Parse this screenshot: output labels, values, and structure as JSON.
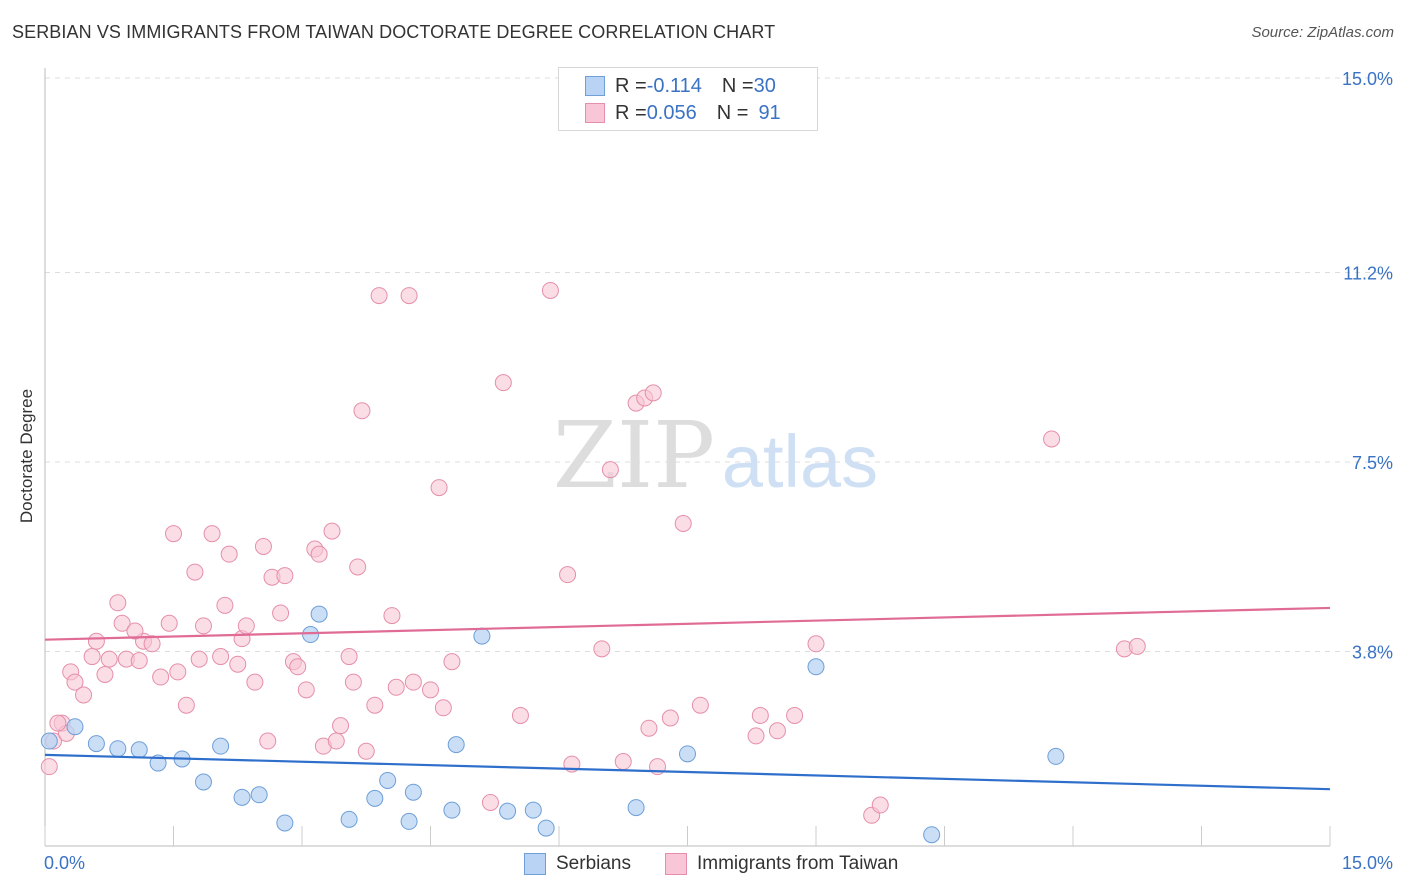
{
  "title": "SERBIAN VS IMMIGRANTS FROM TAIWAN DOCTORATE DEGREE CORRELATION CHART",
  "source": "Source: ZipAtlas.com",
  "watermark": {
    "zip": "ZIP",
    "atlas": "atlas"
  },
  "legend_top": {
    "rows": [
      {
        "r_label": "R = ",
        "r_value": "-0.114",
        "n_label": "N = ",
        "n_value": "30"
      },
      {
        "r_label": "R = ",
        "r_value": "0.056",
        "n_label": "N = ",
        "n_value": "91"
      }
    ]
  },
  "legend_bottom": {
    "serbians": "Serbians",
    "taiwan": "Immigrants from Taiwan"
  },
  "colors": {
    "blue_fill": "#b8d3f3",
    "blue_stroke": "#6e9fd8",
    "blue_line": "#2f6fcc",
    "pink_fill": "#f8c6d6",
    "pink_stroke": "#e58fab",
    "pink_line": "#e06b95",
    "tick_text": "#3a72c4",
    "grid": "#dddddd"
  },
  "chart_data": {
    "type": "scatter",
    "title": "SERBIAN VS IMMIGRANTS FROM TAIWAN DOCTORATE DEGREE CORRELATION CHART",
    "xlabel": "",
    "ylabel": "Doctorate Degree",
    "xlim": [
      0,
      15
    ],
    "ylim": [
      0,
      15
    ],
    "x_tick_labels": [
      "0.0%",
      "15.0%"
    ],
    "y_ticks": [
      3.8,
      7.5,
      11.2,
      15.0
    ],
    "y_tick_labels": [
      "3.8%",
      "7.5%",
      "11.2%",
      "15.0%"
    ],
    "series": [
      {
        "name": "Serbians",
        "r": -0.114,
        "n": 30,
        "trend": {
          "x": [
            0,
            15
          ],
          "y": [
            1.78,
            1.11
          ]
        },
        "points": [
          [
            0.05,
            2.05
          ],
          [
            0.35,
            2.33
          ],
          [
            0.6,
            2.0
          ],
          [
            0.85,
            1.9
          ],
          [
            1.1,
            1.88
          ],
          [
            1.32,
            1.62
          ],
          [
            1.6,
            1.7
          ],
          [
            1.85,
            1.25
          ],
          [
            2.05,
            1.95
          ],
          [
            2.3,
            0.95
          ],
          [
            2.5,
            1.0
          ],
          [
            2.8,
            0.45
          ],
          [
            3.1,
            4.13
          ],
          [
            3.2,
            4.53
          ],
          [
            3.55,
            0.52
          ],
          [
            3.85,
            0.93
          ],
          [
            4.0,
            1.28
          ],
          [
            4.25,
            0.48
          ],
          [
            4.3,
            1.05
          ],
          [
            4.75,
            0.7
          ],
          [
            4.8,
            1.98
          ],
          [
            5.1,
            4.1
          ],
          [
            5.4,
            0.68
          ],
          [
            5.7,
            0.7
          ],
          [
            5.85,
            0.35
          ],
          [
            6.9,
            0.75
          ],
          [
            7.5,
            1.8
          ],
          [
            9.0,
            3.5
          ],
          [
            10.35,
            0.22
          ],
          [
            11.8,
            1.75
          ]
        ]
      },
      {
        "name": "Immigrants from Taiwan",
        "r": 0.056,
        "n": 91,
        "trend": {
          "x": [
            0,
            15
          ],
          "y": [
            4.03,
            4.65
          ]
        },
        "points": [
          [
            0.05,
            1.55
          ],
          [
            0.1,
            2.05
          ],
          [
            0.2,
            2.4
          ],
          [
            0.25,
            2.2
          ],
          [
            0.3,
            3.4
          ],
          [
            0.35,
            3.2
          ],
          [
            0.45,
            2.95
          ],
          [
            0.55,
            3.7
          ],
          [
            0.6,
            4.0
          ],
          [
            0.7,
            3.35
          ],
          [
            0.75,
            3.65
          ],
          [
            0.85,
            4.75
          ],
          [
            0.9,
            4.35
          ],
          [
            0.95,
            3.65
          ],
          [
            1.1,
            3.62
          ],
          [
            1.15,
            4.0
          ],
          [
            1.25,
            3.95
          ],
          [
            1.35,
            3.3
          ],
          [
            1.45,
            4.35
          ],
          [
            1.5,
            6.1
          ],
          [
            1.55,
            3.4
          ],
          [
            1.65,
            2.75
          ],
          [
            1.75,
            5.35
          ],
          [
            1.8,
            3.65
          ],
          [
            1.85,
            4.3
          ],
          [
            1.95,
            6.1
          ],
          [
            2.05,
            3.7
          ],
          [
            2.1,
            4.7
          ],
          [
            2.15,
            5.7
          ],
          [
            2.25,
            3.55
          ],
          [
            2.3,
            4.05
          ],
          [
            2.35,
            4.3
          ],
          [
            2.45,
            3.2
          ],
          [
            2.55,
            5.85
          ],
          [
            2.6,
            2.05
          ],
          [
            2.65,
            5.25
          ],
          [
            2.75,
            4.55
          ],
          [
            2.8,
            5.28
          ],
          [
            2.9,
            3.6
          ],
          [
            2.95,
            3.5
          ],
          [
            3.05,
            3.05
          ],
          [
            3.15,
            5.8
          ],
          [
            3.2,
            5.7
          ],
          [
            3.25,
            1.95
          ],
          [
            3.35,
            6.15
          ],
          [
            3.4,
            2.05
          ],
          [
            3.45,
            2.35
          ],
          [
            3.55,
            3.7
          ],
          [
            3.6,
            3.2
          ],
          [
            3.65,
            5.45
          ],
          [
            3.7,
            8.5
          ],
          [
            3.75,
            1.85
          ],
          [
            3.85,
            2.75
          ],
          [
            3.9,
            10.75
          ],
          [
            4.05,
            4.5
          ],
          [
            4.1,
            3.1
          ],
          [
            4.25,
            10.75
          ],
          [
            4.3,
            3.2
          ],
          [
            4.5,
            3.05
          ],
          [
            4.6,
            7.0
          ],
          [
            4.65,
            2.7
          ],
          [
            4.75,
            3.6
          ],
          [
            5.2,
            0.85
          ],
          [
            5.35,
            9.05
          ],
          [
            5.55,
            2.55
          ],
          [
            5.9,
            10.85
          ],
          [
            6.1,
            5.3
          ],
          [
            6.15,
            1.6
          ],
          [
            6.5,
            3.85
          ],
          [
            6.6,
            7.35
          ],
          [
            6.75,
            1.65
          ],
          [
            6.9,
            8.65
          ],
          [
            7.0,
            8.75
          ],
          [
            7.05,
            2.3
          ],
          [
            7.1,
            8.85
          ],
          [
            7.15,
            1.55
          ],
          [
            7.3,
            2.5
          ],
          [
            7.45,
            6.3
          ],
          [
            7.65,
            2.75
          ],
          [
            8.3,
            2.15
          ],
          [
            8.35,
            2.55
          ],
          [
            8.55,
            2.25
          ],
          [
            8.75,
            2.55
          ],
          [
            9.0,
            3.95
          ],
          [
            9.65,
            0.6
          ],
          [
            9.75,
            0.8
          ],
          [
            11.75,
            7.95
          ],
          [
            12.6,
            3.85
          ],
          [
            12.75,
            3.9
          ],
          [
            0.15,
            2.4
          ],
          [
            1.05,
            4.2
          ]
        ]
      }
    ]
  }
}
